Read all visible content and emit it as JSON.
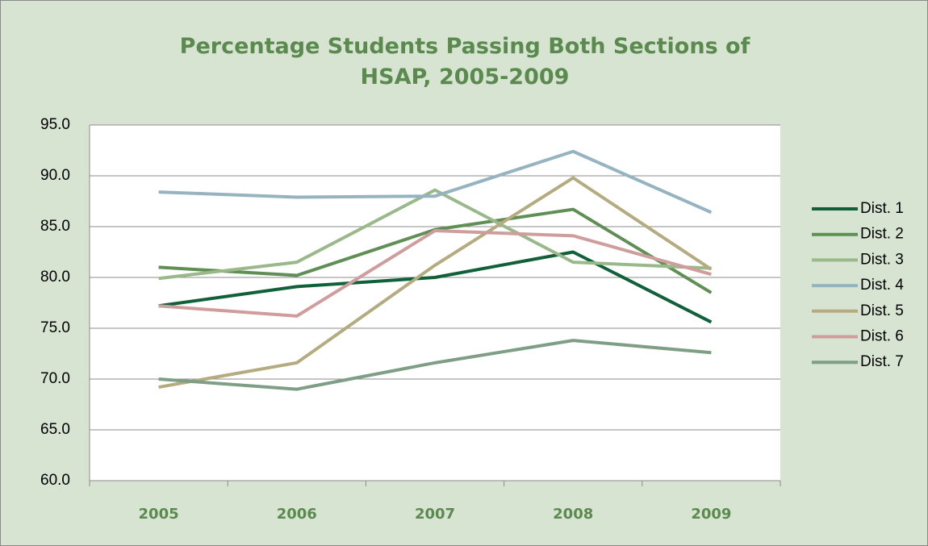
{
  "chart_data": {
    "type": "line",
    "title": "Percentage Students Passing Both Sections of HSAP, 2005-2009",
    "categories": [
      "2005",
      "2006",
      "2007",
      "2008",
      "2009"
    ],
    "series": [
      {
        "name": "Dist. 1",
        "color": "#10603a",
        "values": [
          77.2,
          79.1,
          80.0,
          82.5,
          75.6
        ]
      },
      {
        "name": "Dist. 2",
        "color": "#5f8f55",
        "values": [
          81.0,
          80.2,
          84.7,
          86.7,
          78.5
        ]
      },
      {
        "name": "Dist. 3",
        "color": "#9ab98a",
        "values": [
          79.9,
          81.5,
          88.6,
          81.5,
          80.9
        ]
      },
      {
        "name": "Dist. 4",
        "color": "#95b4c0",
        "values": [
          88.4,
          87.9,
          88.0,
          92.4,
          86.4
        ]
      },
      {
        "name": "Dist. 5",
        "color": "#b5ab80",
        "values": [
          69.2,
          71.6,
          81.2,
          89.8,
          80.8
        ]
      },
      {
        "name": "Dist. 6",
        "color": "#cf9d9c",
        "values": [
          77.2,
          76.2,
          84.6,
          84.1,
          80.3
        ]
      },
      {
        "name": "Dist. 7",
        "color": "#7f9e86",
        "values": [
          70.0,
          69.0,
          71.6,
          73.8,
          72.6
        ]
      }
    ],
    "ylim": [
      60,
      95
    ],
    "yticks": [
      {
        "value": 60,
        "label": "60.0"
      },
      {
        "value": 65,
        "label": "65.0"
      },
      {
        "value": 70,
        "label": "70.0"
      },
      {
        "value": 75,
        "label": "75.0"
      },
      {
        "value": 80,
        "label": "80.0"
      },
      {
        "value": 85,
        "label": "85.0"
      },
      {
        "value": 90,
        "label": "90.0"
      },
      {
        "value": 95,
        "label": "95.0"
      }
    ],
    "grid": true,
    "legend": "right"
  }
}
